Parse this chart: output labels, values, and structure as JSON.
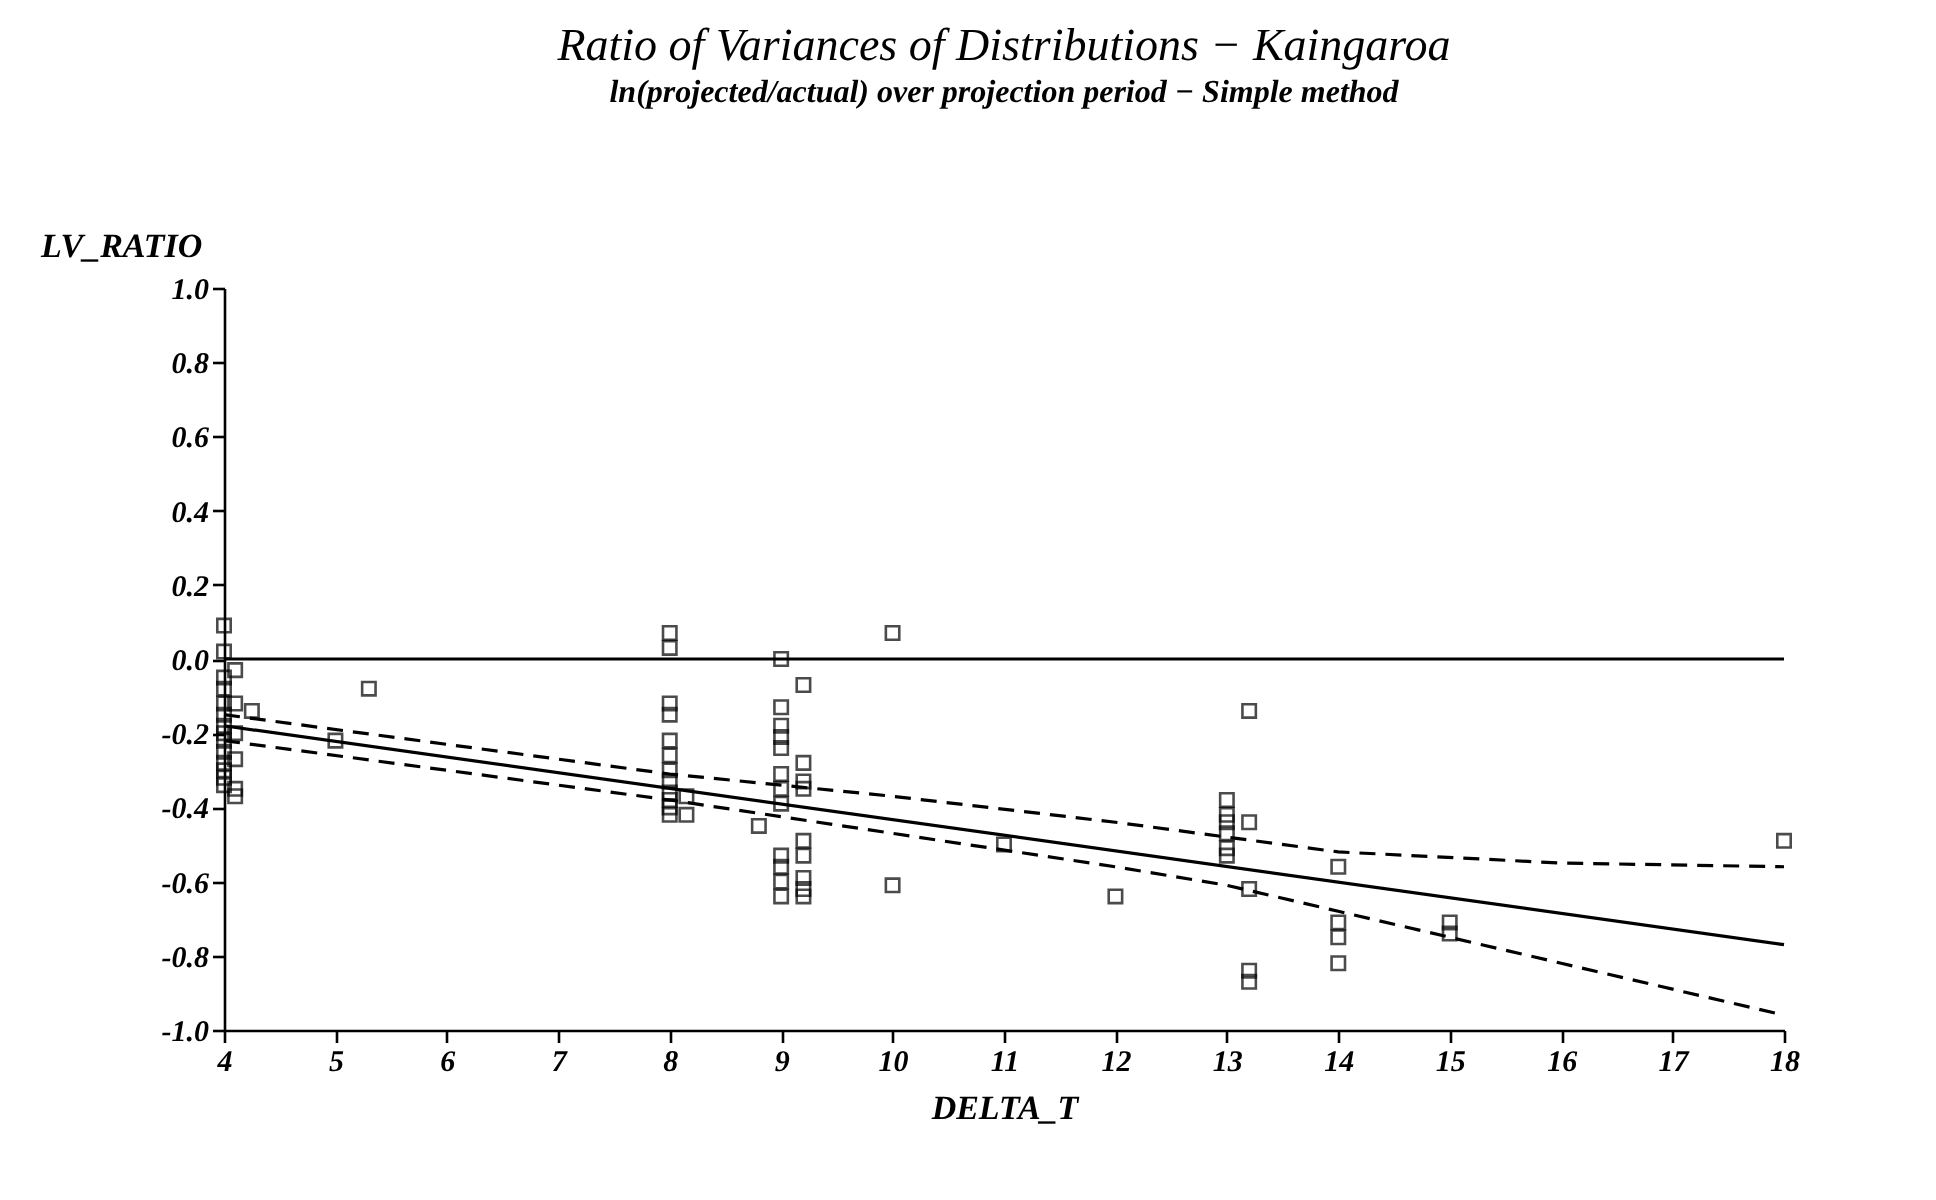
{
  "chart_data": {
    "type": "scatter",
    "title": "Ratio of Variances of Distributions − Kaingaroa",
    "subtitle": "ln(projected/actual)  over  projection period − Simple method",
    "xlabel": "DELTA_T",
    "ylabel": "LV_RATIO",
    "xlim": [
      4,
      18
    ],
    "ylim": [
      -1.0,
      1.0
    ],
    "xticks": [
      4,
      5,
      6,
      7,
      8,
      9,
      10,
      11,
      12,
      13,
      14,
      15,
      16,
      17,
      18
    ],
    "yticks": [
      {
        "value": -1.0,
        "label": "-1.0"
      },
      {
        "value": -0.8,
        "label": "-0.8"
      },
      {
        "value": -0.6,
        "label": "-0.6"
      },
      {
        "value": -0.4,
        "label": "-0.4"
      },
      {
        "value": -0.2,
        "label": "-0.2"
      },
      {
        "value": 0,
        "label": "0.0"
      },
      {
        "value": 0.2,
        "label": "0.2"
      },
      {
        "value": 0.4,
        "label": "0.4"
      },
      {
        "value": 0.6,
        "label": "0.6"
      },
      {
        "value": 0.8,
        "label": "0.8"
      },
      {
        "value": 1.0,
        "label": "1.0"
      }
    ],
    "grid": false,
    "ref_lines": [
      {
        "axis": "y",
        "value": 0,
        "color": "#000000",
        "line_style": "solid"
      }
    ],
    "series": [
      {
        "color": "#000000",
        "marker": "square",
        "x": [
          4,
          4,
          4,
          4,
          4,
          4,
          4,
          4,
          4,
          4,
          4,
          4,
          4,
          4,
          4.1,
          4.1,
          4.1,
          4.1,
          4.1,
          4.1,
          4.25,
          5,
          5.3,
          8,
          8,
          8,
          8,
          8,
          8,
          8,
          8,
          8,
          8,
          8,
          8,
          8.15,
          8.15,
          8.8,
          9,
          9,
          9,
          9,
          9,
          9,
          9,
          9,
          9,
          9,
          9,
          9,
          9.2,
          9.2,
          9.2,
          9.2,
          9.2,
          9.2,
          9.2,
          9.2,
          9.2,
          10,
          10,
          11,
          12,
          13,
          13,
          13,
          13,
          13,
          13,
          13.2,
          13.2,
          13.2,
          13.2,
          13.2,
          14,
          14,
          14,
          14,
          15,
          15,
          18
        ],
        "values": [
          0.09,
          0.02,
          -0.05,
          -0.08,
          -0.12,
          -0.15,
          -0.18,
          -0.2,
          -0.22,
          -0.25,
          -0.28,
          -0.3,
          -0.32,
          -0.34,
          -0.03,
          -0.12,
          -0.2,
          -0.27,
          -0.35,
          -0.37,
          -0.14,
          -0.22,
          -0.08,
          0.07,
          0.03,
          -0.12,
          -0.15,
          -0.22,
          -0.26,
          -0.3,
          -0.33,
          -0.36,
          -0.38,
          -0.4,
          -0.42,
          -0.37,
          -0.42,
          -0.45,
          0.0,
          -0.13,
          -0.18,
          -0.21,
          -0.24,
          -0.31,
          -0.35,
          -0.39,
          -0.53,
          -0.56,
          -0.6,
          -0.64,
          -0.07,
          -0.28,
          -0.33,
          -0.35,
          -0.49,
          -0.53,
          -0.59,
          -0.62,
          -0.64,
          0.07,
          -0.61,
          -0.5,
          -0.64,
          -0.38,
          -0.42,
          -0.44,
          -0.47,
          -0.51,
          -0.53,
          -0.14,
          -0.44,
          -0.62,
          -0.84,
          -0.87,
          -0.56,
          -0.71,
          -0.75,
          -0.82,
          -0.71,
          -0.74,
          -0.49
        ]
      },
      {
        "type": "line",
        "color": "#000000",
        "line_style": "solid",
        "marker": "none",
        "x": [
          4,
          18
        ],
        "values": [
          -0.18,
          -0.77
        ]
      },
      {
        "type": "line",
        "color": "#000000",
        "line_style": "dashed",
        "marker": "none",
        "x": [
          4,
          6,
          8,
          10,
          12,
          13,
          14,
          16,
          18
        ],
        "values": [
          -0.15,
          -0.23,
          -0.31,
          -0.37,
          -0.44,
          -0.48,
          -0.52,
          -0.55,
          -0.56
        ]
      },
      {
        "type": "line",
        "color": "#000000",
        "line_style": "dashed",
        "marker": "none",
        "x": [
          4,
          6,
          8,
          10,
          12,
          13,
          14,
          16,
          18
        ],
        "values": [
          -0.22,
          -0.3,
          -0.38,
          -0.47,
          -0.56,
          -0.61,
          -0.68,
          -0.82,
          -0.96
        ]
      }
    ]
  }
}
